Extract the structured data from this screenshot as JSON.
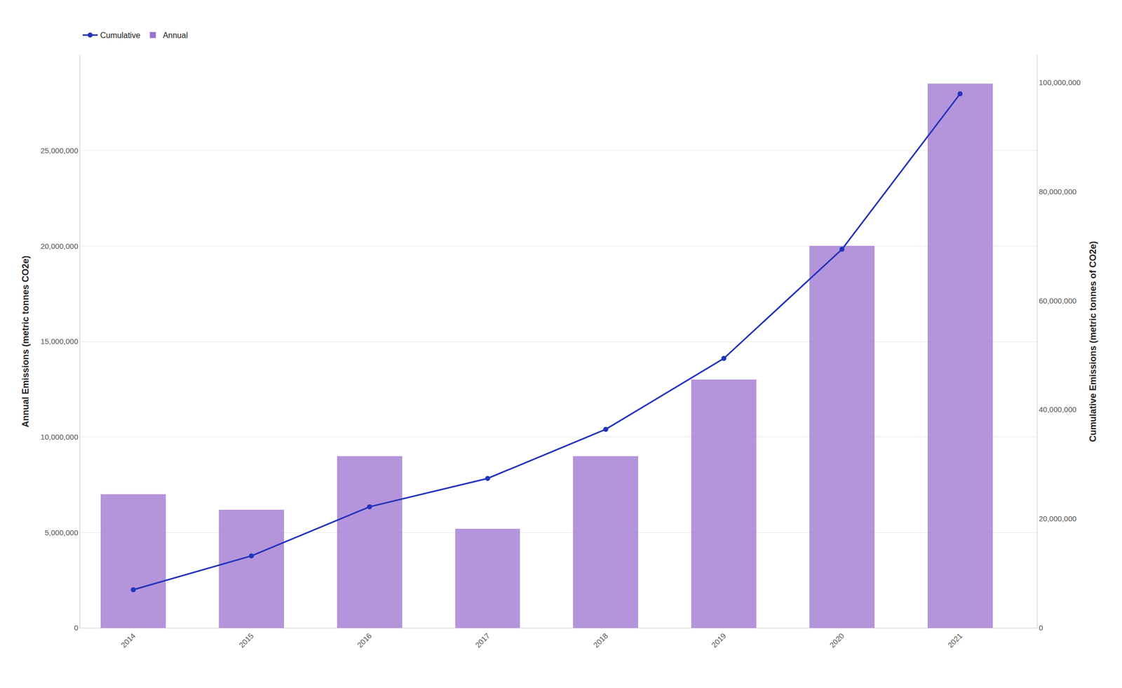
{
  "chart_data": {
    "type": "bar",
    "x": [
      2014,
      2015,
      2016,
      2017,
      2018,
      2019,
      2020,
      2021
    ],
    "xlim": [
      2013.55,
      2021.65
    ],
    "xticks": [
      2014,
      2015,
      2016,
      2017,
      2018,
      2019,
      2020,
      2021
    ],
    "ylabel": "Annual Emissions (metric tonnes CO2e)",
    "y2label": "Cumulative Emissions (metric tonnes of CO2e)",
    "ylim": [
      0,
      30000000
    ],
    "yticks": [
      0,
      {
        "value": 5000000,
        "label": "5,000,000"
      },
      {
        "value": 10000000,
        "label": "10,000,000"
      },
      {
        "value": 15000000,
        "label": "15,000,000"
      },
      {
        "value": 20000000,
        "label": "20,000,000"
      },
      {
        "value": 25000000,
        "label": "25,000,000"
      }
    ],
    "y2lim": [
      0,
      105000000
    ],
    "y2ticks": [
      0,
      {
        "value": 20000000,
        "label": "20,000,000"
      },
      {
        "value": 40000000,
        "label": "40,000,000"
      },
      {
        "value": 60000000,
        "label": "60,000,000"
      },
      {
        "value": 80000000,
        "label": "80,000,000"
      },
      {
        "value": 100000000,
        "label": "100,000,000"
      }
    ],
    "grid": true,
    "legend": "upper left",
    "series": [
      {
        "name": "Cumulative",
        "type": "line",
        "axis": "y2",
        "color": "#2233BB",
        "marker": "circle",
        "line_style": "solid",
        "values": [
          7000000,
          13200000,
          22200000,
          27400000,
          36400000,
          49400000,
          69400000,
          97900000
        ]
      },
      {
        "name": "Annual",
        "type": "bar",
        "color": "#9B72CF",
        "values": [
          7000000,
          6200000,
          9000000,
          5200000,
          9000000,
          13000000,
          20000000,
          28500000
        ]
      }
    ]
  }
}
